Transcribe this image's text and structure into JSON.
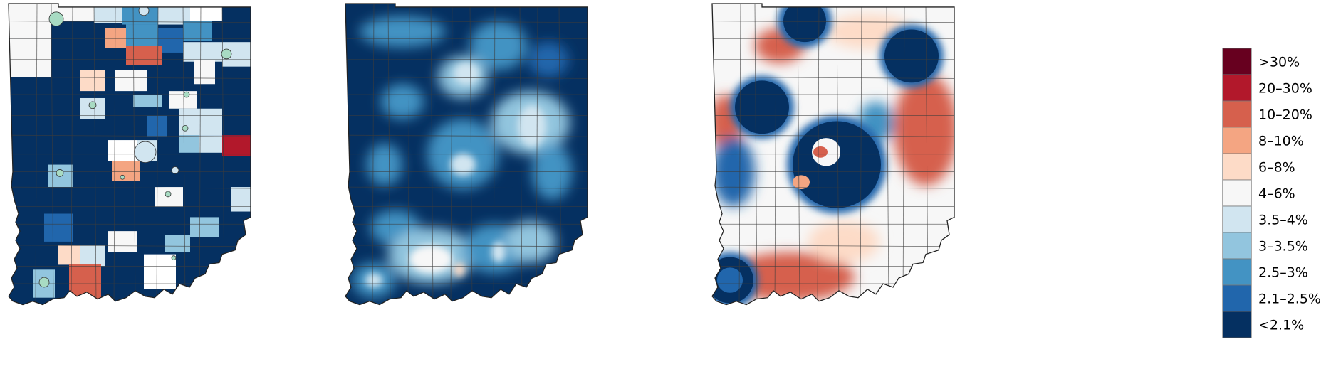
{
  "legend": {
    "bins": [
      {
        "label": ">30%",
        "color": "#67001f"
      },
      {
        "label": "20–30%",
        "color": "#b2182b"
      },
      {
        "label": "10–20%",
        "color": "#d6604d"
      },
      {
        "label": "8–10%",
        "color": "#f4a582"
      },
      {
        "label": "6–8%",
        "color": "#fddbc7"
      },
      {
        "label": "4–6%",
        "color": "#f7f7f7"
      },
      {
        "label": "3.5–4%",
        "color": "#d1e5f0"
      },
      {
        "label": "3–3.5%",
        "color": "#92c5de"
      },
      {
        "label": "2.5–3%",
        "color": "#4393c3"
      },
      {
        "label": "2.1–2.5%",
        "color": "#2166ac"
      },
      {
        "label": "<2.1%",
        "color": "#053061"
      }
    ]
  },
  "maps": [
    {
      "name": "county-choropleth",
      "base_color": "#053061",
      "marker_color": "#a8dbc3"
    },
    {
      "name": "smoothed-surface",
      "base_color": "#053061"
    },
    {
      "name": "residual-surface",
      "base_color": "#f7f7f7"
    }
  ]
}
